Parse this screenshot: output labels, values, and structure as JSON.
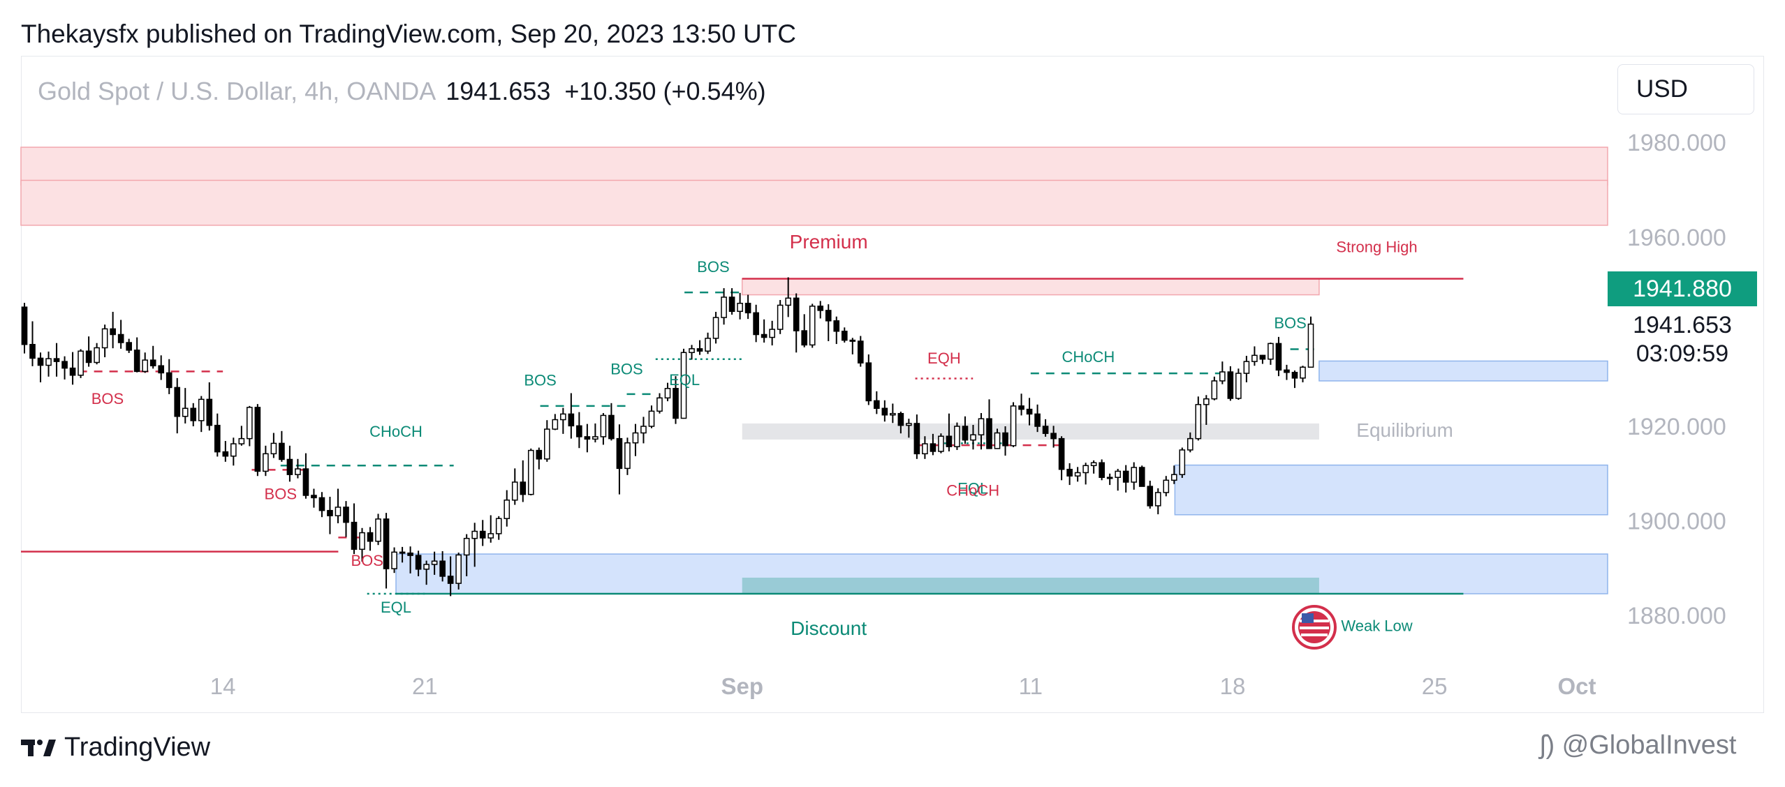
{
  "header": {
    "published": "Thekaysfx published on TradingView.com, Sep 20, 2023 13:50 UTC"
  },
  "legend": {
    "symbol": "Gold Spot / U.S. Dollar, 4h, OANDA",
    "last": "1941.653",
    "change": "+10.350 (+0.54%)"
  },
  "currency_button": {
    "label": "USD"
  },
  "footer": {
    "brand": "TradingView",
    "watermark": "@GlobalInvest"
  },
  "price_badges": {
    "last_price": "1941.880",
    "current": "1941.653",
    "countdown": "03:09:59"
  },
  "colors": {
    "bull": "#ffffff",
    "bear": "#000000",
    "red": "#d32f4b",
    "teal": "#0b8a76",
    "blue_zone": "#d4e3fc",
    "red_zone": "#fce1e3",
    "badge": "#0f9d7f"
  },
  "chart_data": {
    "type": "candlestick",
    "ylim": [
      1870,
      1988
    ],
    "y_ticks": [
      "1980.000",
      "1960.000",
      "1920.000",
      "1900.000",
      "1880.000"
    ],
    "x_ticks": [
      "14",
      "21",
      "Sep",
      "11",
      "18",
      "25",
      "Oct"
    ],
    "x_tick_bold": [
      "Sep",
      "Oct"
    ],
    "start_date": "2023-08-07",
    "end_date": "2023-10-01",
    "series_ohlc": [
      [
        1945.2,
        1946.1,
        1935.4,
        1937.3
      ],
      [
        1937.3,
        1942.2,
        1932.7,
        1934.4
      ],
      [
        1934.4,
        1935.6,
        1929.3,
        1932.9
      ],
      [
        1932.9,
        1935.8,
        1930.5,
        1934.3
      ],
      [
        1934.3,
        1937.6,
        1930.5,
        1933.7
      ],
      [
        1933.7,
        1934.8,
        1929.9,
        1932.3
      ],
      [
        1932.3,
        1935.7,
        1928.8,
        1930.8
      ],
      [
        1930.8,
        1936.3,
        1930.2,
        1935.9
      ],
      [
        1935.9,
        1939.0,
        1932.6,
        1933.5
      ],
      [
        1933.5,
        1937.6,
        1933.1,
        1936.6
      ],
      [
        1936.6,
        1941.5,
        1934.6,
        1940.6
      ],
      [
        1940.6,
        1944.2,
        1936.5,
        1939.4
      ],
      [
        1939.4,
        1942.5,
        1936.4,
        1937.7
      ],
      [
        1937.7,
        1938.5,
        1935.5,
        1936.1
      ],
      [
        1936.1,
        1938.8,
        1931.4,
        1931.6
      ],
      [
        1931.6,
        1935.6,
        1931.3,
        1934.0
      ],
      [
        1934.0,
        1937.0,
        1932.2,
        1932.8
      ],
      [
        1932.8,
        1935.0,
        1929.8,
        1931.3
      ],
      [
        1931.3,
        1934.2,
        1926.8,
        1928.2
      ],
      [
        1928.2,
        1930.2,
        1918.5,
        1922.1
      ],
      [
        1922.1,
        1928.1,
        1920.6,
        1923.8
      ],
      [
        1923.8,
        1924.9,
        1920.0,
        1921.2
      ],
      [
        1921.2,
        1926.4,
        1918.8,
        1925.7
      ],
      [
        1925.7,
        1929.3,
        1919.1,
        1920.2
      ],
      [
        1920.2,
        1922.7,
        1913.6,
        1914.6
      ],
      [
        1914.6,
        1916.9,
        1912.5,
        1913.7
      ],
      [
        1913.7,
        1917.6,
        1911.7,
        1916.3
      ],
      [
        1916.3,
        1920.1,
        1915.9,
        1917.4
      ],
      [
        1917.4,
        1924.3,
        1915.8,
        1924.0
      ],
      [
        1924.0,
        1924.7,
        1909.5,
        1910.5
      ],
      [
        1910.5,
        1915.9,
        1909.5,
        1914.2
      ],
      [
        1914.2,
        1918.6,
        1913.3,
        1916.4
      ],
      [
        1916.4,
        1919.0,
        1912.5,
        1913.0
      ],
      [
        1913.0,
        1915.9,
        1908.3,
        1909.8
      ],
      [
        1909.8,
        1913.1,
        1909.0,
        1911.0
      ],
      [
        1911.0,
        1914.3,
        1904.7,
        1905.4
      ],
      [
        1905.4,
        1906.8,
        1902.8,
        1904.9
      ],
      [
        1904.9,
        1906.1,
        1900.8,
        1902.2
      ],
      [
        1902.2,
        1905.1,
        1897.2,
        1901.1
      ],
      [
        1901.1,
        1906.8,
        1899.5,
        1902.9
      ],
      [
        1902.9,
        1904.2,
        1896.6,
        1899.7
      ],
      [
        1899.7,
        1903.7,
        1893.0,
        1894.0
      ],
      [
        1894.0,
        1898.5,
        1891.4,
        1897.5
      ],
      [
        1897.5,
        1898.7,
        1893.7,
        1895.7
      ],
      [
        1895.7,
        1901.5,
        1894.9,
        1900.4
      ],
      [
        1900.4,
        1901.7,
        1885.7,
        1889.9
      ],
      [
        1889.9,
        1894.4,
        1889.0,
        1893.4
      ],
      [
        1893.4,
        1894.5,
        1891.2,
        1893.2
      ],
      [
        1893.2,
        1894.6,
        1888.9,
        1892.7
      ],
      [
        1892.7,
        1893.7,
        1888.3,
        1889.8
      ],
      [
        1889.8,
        1891.6,
        1886.5,
        1890.8
      ],
      [
        1890.8,
        1893.5,
        1888.6,
        1891.5
      ],
      [
        1891.5,
        1893.6,
        1887.2,
        1888.3
      ],
      [
        1888.3,
        1892.5,
        1884.1,
        1886.8
      ],
      [
        1886.8,
        1893.3,
        1885.5,
        1892.8
      ],
      [
        1892.8,
        1897.2,
        1888.3,
        1896.3
      ],
      [
        1896.3,
        1899.6,
        1890.3,
        1897.8
      ],
      [
        1897.8,
        1900.2,
        1894.7,
        1896.4
      ],
      [
        1896.4,
        1901.2,
        1895.4,
        1897.3
      ],
      [
        1897.3,
        1901.0,
        1896.0,
        1900.5
      ],
      [
        1900.5,
        1906.5,
        1898.8,
        1904.4
      ],
      [
        1904.4,
        1911.1,
        1903.4,
        1908.2
      ],
      [
        1908.2,
        1912.8,
        1904.0,
        1905.6
      ],
      [
        1905.6,
        1915.3,
        1905.4,
        1914.9
      ],
      [
        1914.9,
        1915.5,
        1910.9,
        1913.1
      ],
      [
        1913.1,
        1921.3,
        1912.5,
        1919.4
      ],
      [
        1919.4,
        1922.6,
        1919.2,
        1921.4
      ],
      [
        1921.4,
        1923.9,
        1918.4,
        1922.6
      ],
      [
        1922.6,
        1927.0,
        1917.4,
        1920.1
      ],
      [
        1920.1,
        1923.0,
        1915.4,
        1917.8
      ],
      [
        1917.8,
        1920.5,
        1914.5,
        1917.3
      ],
      [
        1917.3,
        1920.6,
        1916.6,
        1917.8
      ],
      [
        1917.8,
        1922.8,
        1916.1,
        1922.3
      ],
      [
        1922.3,
        1924.9,
        1917.0,
        1917.4
      ],
      [
        1917.4,
        1920.4,
        1905.6,
        1911.1
      ],
      [
        1911.1,
        1917.6,
        1909.7,
        1916.5
      ],
      [
        1916.5,
        1920.5,
        1913.7,
        1918.6
      ],
      [
        1918.6,
        1922.0,
        1916.4,
        1920.0
      ],
      [
        1920.0,
        1924.4,
        1919.6,
        1923.2
      ],
      [
        1923.2,
        1927.0,
        1922.7,
        1926.0
      ],
      [
        1926.0,
        1929.2,
        1925.3,
        1928.0
      ],
      [
        1928.0,
        1930.6,
        1920.5,
        1921.7
      ],
      [
        1921.7,
        1936.4,
        1921.6,
        1935.6
      ],
      [
        1935.6,
        1937.2,
        1934.1,
        1936.4
      ],
      [
        1936.4,
        1938.2,
        1935.1,
        1935.9
      ],
      [
        1935.9,
        1939.8,
        1935.3,
        1938.6
      ],
      [
        1938.6,
        1944.2,
        1937.5,
        1943.0
      ],
      [
        1943.0,
        1949.2,
        1941.5,
        1947.3
      ],
      [
        1947.3,
        1949.2,
        1943.6,
        1944.3
      ],
      [
        1944.3,
        1948.2,
        1942.6,
        1946.0
      ],
      [
        1946.0,
        1947.8,
        1942.7,
        1944.0
      ],
      [
        1944.0,
        1945.7,
        1937.8,
        1939.4
      ],
      [
        1939.4,
        1942.6,
        1937.7,
        1938.8
      ],
      [
        1938.8,
        1942.3,
        1937.1,
        1940.5
      ],
      [
        1940.5,
        1946.7,
        1939.5,
        1945.6
      ],
      [
        1945.6,
        1951.5,
        1943.1,
        1947.1
      ],
      [
        1947.1,
        1948.1,
        1935.6,
        1940.2
      ],
      [
        1940.2,
        1943.7,
        1936.7,
        1937.2
      ],
      [
        1937.2,
        1945.9,
        1936.6,
        1945.4
      ],
      [
        1945.4,
        1946.5,
        1942.8,
        1944.5
      ],
      [
        1944.5,
        1945.8,
        1938.0,
        1942.3
      ],
      [
        1942.3,
        1943.2,
        1937.4,
        1940.1
      ],
      [
        1940.1,
        1940.9,
        1937.7,
        1938.2
      ],
      [
        1938.2,
        1938.7,
        1935.2,
        1938.0
      ],
      [
        1938.0,
        1939.1,
        1932.6,
        1933.4
      ],
      [
        1933.4,
        1935.2,
        1924.5,
        1925.4
      ],
      [
        1925.4,
        1927.4,
        1922.6,
        1923.8
      ],
      [
        1923.8,
        1925.5,
        1921.0,
        1922.4
      ],
      [
        1922.4,
        1924.8,
        1920.7,
        1922.7
      ],
      [
        1922.7,
        1923.1,
        1918.5,
        1920.2
      ],
      [
        1920.2,
        1921.6,
        1917.6,
        1920.6
      ],
      [
        1920.6,
        1922.5,
        1913.1,
        1914.2
      ],
      [
        1914.2,
        1917.9,
        1913.1,
        1916.3
      ],
      [
        1916.3,
        1918.4,
        1913.9,
        1914.7
      ],
      [
        1914.7,
        1918.5,
        1914.3,
        1917.9
      ],
      [
        1917.9,
        1922.7,
        1914.7,
        1915.7
      ],
      [
        1915.7,
        1920.8,
        1915.0,
        1920.0
      ],
      [
        1920.0,
        1922.1,
        1916.3,
        1917.1
      ],
      [
        1917.1,
        1920.3,
        1915.1,
        1918.2
      ],
      [
        1918.2,
        1922.8,
        1915.1,
        1921.6
      ],
      [
        1921.6,
        1925.7,
        1915.2,
        1915.3
      ],
      [
        1915.3,
        1919.5,
        1915.2,
        1918.6
      ],
      [
        1918.6,
        1920.0,
        1913.8,
        1915.9
      ],
      [
        1915.9,
        1925.1,
        1915.6,
        1924.3
      ],
      [
        1924.3,
        1926.9,
        1922.3,
        1923.6
      ],
      [
        1923.6,
        1926.0,
        1920.2,
        1922.6
      ],
      [
        1922.6,
        1924.6,
        1918.8,
        1920.0
      ],
      [
        1920.0,
        1921.5,
        1917.8,
        1918.5
      ],
      [
        1918.5,
        1920.1,
        1915.5,
        1917.4
      ],
      [
        1917.4,
        1917.9,
        1908.6,
        1910.9
      ],
      [
        1910.9,
        1912.2,
        1907.6,
        1909.5
      ],
      [
        1909.5,
        1911.4,
        1908.3,
        1910.2
      ],
      [
        1910.2,
        1912.3,
        1907.7,
        1911.7
      ],
      [
        1911.7,
        1912.8,
        1910.0,
        1912.3
      ],
      [
        1912.3,
        1913.0,
        1908.6,
        1909.2
      ],
      [
        1909.2,
        1910.0,
        1907.6,
        1909.2
      ],
      [
        1909.2,
        1911.0,
        1906.4,
        1910.5
      ],
      [
        1910.5,
        1911.8,
        1906.0,
        1908.2
      ],
      [
        1908.2,
        1912.4,
        1906.6,
        1911.3
      ],
      [
        1911.3,
        1911.7,
        1907.3,
        1907.3
      ],
      [
        1907.3,
        1908.5,
        1902.6,
        1903.2
      ],
      [
        1903.2,
        1906.9,
        1901.4,
        1906.0
      ],
      [
        1906.0,
        1909.5,
        1905.2,
        1908.6
      ],
      [
        1908.6,
        1911.7,
        1907.8,
        1909.8
      ],
      [
        1909.8,
        1915.5,
        1909.1,
        1915.0
      ],
      [
        1915.0,
        1918.7,
        1914.5,
        1917.4
      ],
      [
        1917.4,
        1926.3,
        1917.0,
        1924.6
      ],
      [
        1924.6,
        1926.6,
        1920.3,
        1925.8
      ],
      [
        1925.8,
        1930.5,
        1925.5,
        1929.6
      ],
      [
        1929.6,
        1933.7,
        1928.9,
        1931.5
      ],
      [
        1931.5,
        1932.7,
        1925.4,
        1925.9
      ],
      [
        1925.9,
        1932.2,
        1925.6,
        1931.2
      ],
      [
        1931.2,
        1934.9,
        1929.3,
        1933.7
      ],
      [
        1933.7,
        1936.9,
        1932.8,
        1935.0
      ],
      [
        1935.0,
        1935.1,
        1933.2,
        1934.2
      ],
      [
        1934.2,
        1937.7,
        1933.0,
        1937.5
      ],
      [
        1937.5,
        1938.9,
        1930.6,
        1931.9
      ],
      [
        1931.9,
        1933.0,
        1929.8,
        1931.4
      ],
      [
        1931.4,
        1931.8,
        1928.1,
        1930.2
      ],
      [
        1930.2,
        1932.8,
        1929.3,
        1932.5
      ],
      [
        1932.5,
        1943.2,
        1932.4,
        1941.6
      ]
    ],
    "zones": [
      {
        "label": "",
        "y1": 1971,
        "y2": 1979,
        "x1": "2023-08-07",
        "x2": "2023-10-01",
        "color": "red_zone"
      },
      {
        "label": "",
        "y1": 1962.5,
        "y2": 1972,
        "x1": "2023-08-07",
        "x2": "2023-10-01",
        "color": "red_zone"
      },
      {
        "label": "",
        "y1": 1947.8,
        "y2": 1951.2,
        "x1": "2023-09-01",
        "x2": "2023-09-21",
        "color": "red_zone"
      },
      {
        "label": "",
        "y1": 1917.2,
        "y2": 1920.6,
        "x1": "2023-09-01",
        "x2": "2023-09-21",
        "color": "gray"
      },
      {
        "label": "",
        "y1": 1929.6,
        "y2": 1933.8,
        "x1": "2023-09-21",
        "x2": "2023-10-01",
        "color": "blue_zone"
      },
      {
        "label": "",
        "y1": 1901.3,
        "y2": 1911.8,
        "x1": "2023-09-16",
        "x2": "2023-10-01",
        "color": "blue_zone"
      },
      {
        "label": "",
        "y1": 1884.6,
        "y2": 1893.0,
        "x1": "2023-08-20",
        "x2": "2023-10-01",
        "color": "blue_zone"
      },
      {
        "label": "",
        "y1": 1884.6,
        "y2": 1888.0,
        "x1": "2023-09-01",
        "x2": "2023-09-21",
        "color": "teal"
      }
    ],
    "lines": [
      {
        "y": 1951.2,
        "x1": "2023-09-01",
        "x2": "2023-09-26",
        "color": "red",
        "style": "solid"
      },
      {
        "y": 1884.6,
        "x1": "2023-08-20",
        "x2": "2023-09-26",
        "color": "teal",
        "style": "solid"
      },
      {
        "y": 1893.5,
        "x1": "2023-08-07",
        "x2": "2023-08-18",
        "color": "red",
        "style": "solid"
      },
      {
        "y": 1931.6,
        "x1": "2023-08-09",
        "x2": "2023-08-14",
        "color": "red",
        "style": "dashed"
      },
      {
        "y": 1910.8,
        "x1": "2023-08-15",
        "x2": "2023-08-17",
        "color": "red",
        "style": "dashed"
      },
      {
        "y": 1896.5,
        "x1": "2023-08-18",
        "x2": "2023-08-19",
        "color": "red",
        "style": "dashed"
      },
      {
        "y": 1911.7,
        "x1": "2023-08-16",
        "x2": "2023-08-22",
        "color": "teal",
        "style": "dashed"
      },
      {
        "y": 1884.6,
        "x1": "2023-08-19",
        "x2": "2023-08-21",
        "color": "teal",
        "style": "dotted"
      },
      {
        "y": 1924.3,
        "x1": "2023-08-25",
        "x2": "2023-08-28",
        "color": "teal",
        "style": "dashed"
      },
      {
        "y": 1926.8,
        "x1": "2023-08-28",
        "x2": "2023-08-29",
        "color": "teal",
        "style": "dashed"
      },
      {
        "y": 1948.3,
        "x1": "2023-08-30",
        "x2": "2023-09-01",
        "color": "teal",
        "style": "dashed"
      },
      {
        "y": 1934.2,
        "x1": "2023-08-29",
        "x2": "2023-09-01",
        "color": "teal",
        "style": "dotted"
      },
      {
        "y": 1930.1,
        "x1": "2023-09-07",
        "x2": "2023-09-09",
        "color": "red",
        "style": "dotted"
      },
      {
        "y": 1916.0,
        "x1": "2023-09-07",
        "x2": "2023-09-12",
        "color": "red",
        "style": "dashed"
      },
      {
        "y": 1916.4,
        "x1": "2023-09-08",
        "x2": "2023-09-10",
        "color": "teal",
        "style": "dotted"
      },
      {
        "y": 1931.2,
        "x1": "2023-09-11",
        "x2": "2023-09-18",
        "color": "teal",
        "style": "dashed"
      },
      {
        "y": 1936.3,
        "x1": "2023-09-20",
        "x2": "2023-09-21",
        "color": "teal",
        "style": "dashed"
      }
    ],
    "annotations": [
      {
        "text": "BOS",
        "x": "2023-08-10",
        "y": 1924.7,
        "color": "red"
      },
      {
        "text": "BOS",
        "x": "2023-08-16",
        "y": 1904.6,
        "color": "red"
      },
      {
        "text": "BOS",
        "x": "2023-08-19",
        "y": 1890.5,
        "color": "red"
      },
      {
        "text": "CHoCH",
        "x": "2023-08-20",
        "y": 1917.8,
        "color": "teal"
      },
      {
        "text": "EQL",
        "x": "2023-08-20",
        "y": 1880.6,
        "color": "teal"
      },
      {
        "text": "BOS",
        "x": "2023-08-25",
        "y": 1928.6,
        "color": "teal"
      },
      {
        "text": "BOS",
        "x": "2023-08-28",
        "y": 1931.0,
        "color": "teal"
      },
      {
        "text": "BOS",
        "x": "2023-08-31",
        "y": 1952.6,
        "color": "teal"
      },
      {
        "text": "EQL",
        "x": "2023-08-30",
        "y": 1928.7,
        "color": "teal"
      },
      {
        "text": "Premium",
        "x": "2023-09-04",
        "y": 1957.6,
        "color": "red"
      },
      {
        "text": "Strong High",
        "x": "2023-09-23",
        "y": 1956.8,
        "color": "red"
      },
      {
        "text": "EQH",
        "x": "2023-09-08",
        "y": 1933.3,
        "color": "red"
      },
      {
        "text": "CHoCH",
        "x": "2023-09-13",
        "y": 1933.6,
        "color": "teal"
      },
      {
        "text": "EQL",
        "x": "2023-09-09",
        "y": 1905.8,
        "color": "teal"
      },
      {
        "text": "CHoCH",
        "x": "2023-09-09",
        "y": 1905.3,
        "color": "red"
      },
      {
        "text": "BOS",
        "x": "2023-09-20",
        "y": 1940.7,
        "color": "teal"
      },
      {
        "text": "Equilibrium",
        "x": "2023-09-23",
        "y": 1917.8,
        "color": "gray"
      },
      {
        "text": "Discount",
        "x": "2023-09-04",
        "y": 1875.9,
        "color": "teal"
      },
      {
        "text": "Weak Low",
        "x": "2023-09-23",
        "y": 1876.7,
        "color": "teal"
      }
    ]
  }
}
